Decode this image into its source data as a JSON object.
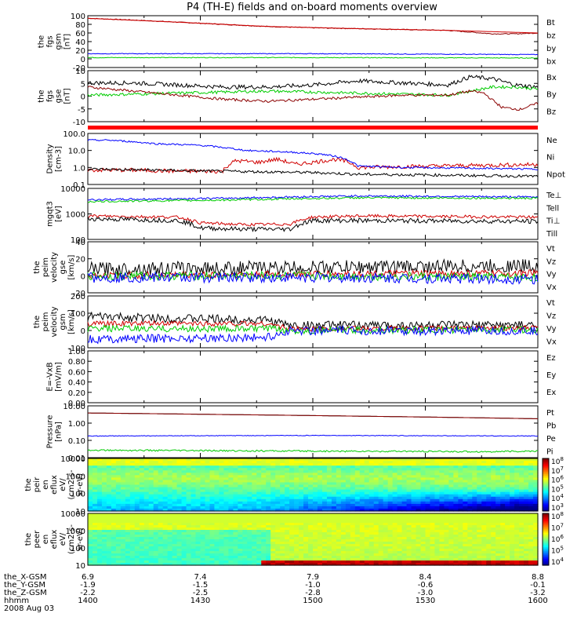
{
  "title": "P4 (TH-E) fields and on-board moments overview",
  "colors": {
    "black": "#000000",
    "red": "#d00000",
    "darkred": "#8b0000",
    "green": "#00cc00",
    "blue": "#0000ff",
    "banner": "#ff0000"
  },
  "chart_data": [
    {
      "type": "line",
      "panel": "fgs_gsm_mag",
      "ylabel_lines": [
        "the",
        "fgs",
        "gsm",
        "[nT]"
      ],
      "ylim": [
        -20,
        100
      ],
      "yticks": [
        "100",
        "80",
        "60",
        "40",
        "20",
        "0",
        "-20"
      ],
      "series": [
        {
          "name": "Bt",
          "color": "darkred",
          "x": [
            0,
            0.1,
            0.2,
            0.3,
            0.4,
            0.5,
            0.6,
            0.7,
            0.8,
            0.85,
            0.9,
            0.95,
            1
          ],
          "values": [
            94,
            90,
            85,
            80,
            75,
            72,
            70,
            68,
            66,
            62,
            58,
            58,
            60
          ],
          "noise": 1
        },
        {
          "name": "bz",
          "color": "red",
          "x": [
            0,
            0.2,
            0.4,
            0.6,
            0.8,
            1
          ],
          "values": [
            94,
            85,
            75,
            70,
            66,
            60
          ],
          "noise": 0
        },
        {
          "name": "by",
          "color": "green",
          "x": [
            0,
            0.5,
            1
          ],
          "values": [
            3,
            3,
            2
          ],
          "noise": 0.8
        },
        {
          "name": "bx",
          "color": "blue",
          "x": [
            0,
            0.5,
            1
          ],
          "values": [
            12,
            12,
            10
          ],
          "noise": 0.8
        }
      ]
    },
    {
      "type": "line",
      "panel": "fgs_gse_components",
      "ylabel_lines": [
        "the",
        "fgs",
        "gse",
        "[nT]"
      ],
      "ylim": [
        -15,
        10
      ],
      "yticks": [
        "10",
        "5",
        "0",
        "-5",
        "-10"
      ],
      "series": [
        {
          "name": "Bx",
          "color": "black",
          "x": [
            0,
            0.1,
            0.2,
            0.3,
            0.4,
            0.5,
            0.6,
            0.7,
            0.8,
            0.85,
            0.9,
            0.95,
            1
          ],
          "values": [
            4,
            4,
            3,
            2,
            2,
            3,
            5,
            4,
            3,
            7,
            6,
            3,
            2
          ],
          "noise": 1
        },
        {
          "name": "By",
          "color": "green",
          "x": [
            0,
            0.2,
            0.4,
            0.6,
            0.8,
            0.85,
            0.9,
            0.95,
            1
          ],
          "values": [
            -2,
            -1,
            0,
            -1,
            -2,
            0,
            2,
            2,
            1
          ],
          "noise": 0.7
        },
        {
          "name": "Bz",
          "color": "darkred",
          "x": [
            0,
            0.1,
            0.2,
            0.3,
            0.4,
            0.5,
            0.6,
            0.7,
            0.8,
            0.85,
            0.88,
            0.92,
            0.96,
            1
          ],
          "values": [
            2,
            0,
            -2,
            -4,
            -5,
            -4,
            -3,
            -2,
            -2,
            0,
            -1,
            -8,
            -9,
            -6
          ],
          "noise": 0.6
        }
      ]
    },
    {
      "type": "line",
      "panel": "density",
      "log": true,
      "ylabel_lines": [
        "Density",
        "[cm-3]"
      ],
      "ylim": [
        0.1,
        100
      ],
      "yticks": [
        "100.0",
        "10.0",
        "1.0",
        "0.1"
      ],
      "series": [
        {
          "name": "Ne",
          "color": "red",
          "x": [
            0,
            0.1,
            0.2,
            0.3,
            0.33,
            0.38,
            0.42,
            0.46,
            0.5,
            0.55,
            0.58,
            0.6,
            1
          ],
          "values": [
            0.7,
            0.7,
            0.6,
            0.6,
            2.5,
            2,
            3,
            1.5,
            2,
            3,
            2,
            1,
            1.5
          ],
          "noise": 0.12
        },
        {
          "name": "Ni",
          "color": "black",
          "x": [
            0,
            0.3,
            0.5,
            0.6,
            1
          ],
          "values": [
            0.8,
            0.6,
            0.5,
            0.4,
            0.3
          ],
          "noise": 0.08
        },
        {
          "name": "Npot",
          "color": "blue",
          "x": [
            0,
            0.05,
            0.15,
            0.25,
            0.35,
            0.45,
            0.52,
            0.56,
            0.6,
            0.7,
            1
          ],
          "values": [
            40,
            40,
            25,
            20,
            10,
            8,
            6,
            4,
            1.2,
            1,
            0.8
          ],
          "noise": 0.05
        }
      ]
    },
    {
      "type": "line",
      "panel": "temperature",
      "log": true,
      "ylabel_lines": [
        "mgqt3",
        "[eV]"
      ],
      "ylim": [
        20,
        10000
      ],
      "yticks": [
        "10000",
        "1000",
        "100"
      ],
      "series": [
        {
          "name": "Te⊥",
          "color": "red",
          "x": [
            0,
            0.2,
            0.25,
            0.35,
            0.45,
            0.5,
            0.6,
            1
          ],
          "values": [
            350,
            300,
            150,
            120,
            130,
            300,
            350,
            300
          ],
          "noise": 0.08
        },
        {
          "name": "Tell",
          "color": "black",
          "x": [
            0,
            0.2,
            0.25,
            0.35,
            0.45,
            0.5,
            0.6,
            1
          ],
          "values": [
            250,
            200,
            80,
            70,
            70,
            200,
            200,
            180
          ],
          "noise": 0.12
        },
        {
          "name": "Ti⊥",
          "color": "blue",
          "x": [
            0,
            0.3,
            0.6,
            1
          ],
          "values": [
            2500,
            3000,
            4000,
            3500
          ],
          "noise": 0.05
        },
        {
          "name": "Till",
          "color": "green",
          "x": [
            0,
            0.3,
            0.6,
            1
          ],
          "values": [
            2000,
            2400,
            3200,
            3000
          ],
          "noise": 0.05
        }
      ]
    },
    {
      "type": "line",
      "panel": "peim_velocity_gse",
      "ylabel_lines": [
        "the",
        "peim",
        "velocity",
        "gse",
        "[km/s]"
      ],
      "ylim": [
        -20,
        40
      ],
      "yticks": [
        "40",
        "20",
        "0",
        "-20"
      ],
      "series": [
        {
          "name": "Vt",
          "color": "black",
          "x": [
            0,
            0.5,
            1
          ],
          "values": [
            8,
            10,
            12
          ],
          "noise": 8
        },
        {
          "name": "Vz",
          "color": "red",
          "x": [
            0,
            0.5,
            1
          ],
          "values": [
            0,
            2,
            3
          ],
          "noise": 4
        },
        {
          "name": "Vy",
          "color": "green",
          "x": [
            0,
            0.5,
            1
          ],
          "values": [
            0,
            0,
            -2
          ],
          "noise": 5
        },
        {
          "name": "Vx",
          "color": "blue",
          "x": [
            0,
            0.5,
            1
          ],
          "values": [
            -2,
            -2,
            -4
          ],
          "noise": 6
        }
      ]
    },
    {
      "type": "line",
      "panel": "peim_velocity_gsm",
      "ylabel_lines": [
        "the",
        "peim",
        "velocity",
        "gsm",
        "[km/s]"
      ],
      "ylim": [
        -100,
        200
      ],
      "yticks": [
        "200",
        "100",
        "0",
        "-100"
      ],
      "series": [
        {
          "name": "Vt",
          "color": "black",
          "x": [
            0,
            0.4,
            0.45,
            1
          ],
          "values": [
            80,
            60,
            30,
            30
          ],
          "noise": 25
        },
        {
          "name": "Vz",
          "color": "red",
          "x": [
            0,
            0.4,
            0.45,
            1
          ],
          "values": [
            40,
            40,
            10,
            15
          ],
          "noise": 15
        },
        {
          "name": "Vy",
          "color": "green",
          "x": [
            0,
            0.4,
            0.45,
            1
          ],
          "values": [
            10,
            10,
            0,
            5
          ],
          "noise": 20
        },
        {
          "name": "Vx",
          "color": "blue",
          "x": [
            0,
            0.4,
            0.45,
            1
          ],
          "values": [
            -50,
            -40,
            0,
            -5
          ],
          "noise": 25
        }
      ]
    },
    {
      "type": "line",
      "panel": "efield",
      "ylabel_lines": [
        "E=-VxB",
        "[mV/m]"
      ],
      "ylim": [
        0,
        1
      ],
      "yticks": [
        "1.00",
        "0.80",
        "0.60",
        "0.40",
        "0.20",
        "0.00"
      ],
      "series": [
        {
          "name": "Ez",
          "color": "red",
          "x": [],
          "values": [],
          "noise": 0
        },
        {
          "name": "Ey",
          "color": "green",
          "x": [],
          "values": [],
          "noise": 0
        },
        {
          "name": "Ex",
          "color": "blue",
          "x": [],
          "values": [],
          "noise": 0
        }
      ]
    },
    {
      "type": "line",
      "panel": "pressure",
      "log": true,
      "ylabel_lines": [
        "Pressure",
        "[nPa]"
      ],
      "ylim": [
        0.005,
        10
      ],
      "yticks": [
        "10.00",
        "1.00",
        "0.10",
        "0.01"
      ],
      "series": [
        {
          "name": "Pt",
          "color": "black",
          "x": [
            0,
            0.3,
            0.6,
            1
          ],
          "values": [
            3.5,
            2.8,
            2.2,
            1.5
          ],
          "noise": 0
        },
        {
          "name": "Pb",
          "color": "darkred",
          "x": [
            0,
            0.3,
            0.6,
            1
          ],
          "values": [
            3.5,
            2.8,
            2.2,
            1.5
          ],
          "noise": 0
        },
        {
          "name": "Pe",
          "color": "green",
          "x": [
            0,
            0.5,
            0.9,
            1
          ],
          "values": [
            0.015,
            0.013,
            0.012,
            0.013
          ],
          "noise": 0.05
        },
        {
          "name": "Pi",
          "color": "blue",
          "x": [
            0,
            0.5,
            1
          ],
          "values": [
            0.12,
            0.13,
            0.12
          ],
          "noise": 0.02
        }
      ]
    },
    {
      "type": "heatmap",
      "panel": "peir_en_eflux",
      "ylabel_lines": [
        "the",
        "peir",
        "en",
        "eflux",
        "eV/",
        "(cm2-s-",
        "sr-eV)"
      ],
      "yticks": [
        "10000",
        "1000",
        "100",
        "10"
      ],
      "colorbar_ticks": [
        "10^8",
        "10^7",
        "10^6",
        "10^5",
        "10^4",
        "10^3"
      ]
    },
    {
      "type": "heatmap",
      "panel": "peer_en_eflux",
      "ylabel_lines": [
        "the",
        "peer",
        "en",
        "eflux",
        "eV/",
        "(cm2-s-",
        "sr-eV)"
      ],
      "yticks": [
        "10000",
        "1000",
        "100",
        "10"
      ],
      "colorbar_ticks": [
        "10^8",
        "10^7",
        "10^6",
        "10^5",
        "10^4"
      ]
    }
  ],
  "xaxis": {
    "rows": [
      {
        "label": "the_X-GSM",
        "values": [
          "6.9",
          "7.4",
          "7.9",
          "8.4",
          "8.8"
        ]
      },
      {
        "label": "the_Y-GSM",
        "values": [
          "-1.9",
          "-1.5",
          "-1.0",
          "-0.6",
          "-0.1"
        ]
      },
      {
        "label": "the_Z-GSM",
        "values": [
          "-2.2",
          "-2.5",
          "-2.8",
          "-3.0",
          "-3.2"
        ]
      },
      {
        "label": "hhmm",
        "values": [
          "1400",
          "1430",
          "1500",
          "1530",
          "1600"
        ]
      }
    ],
    "date": "2008 Aug 03"
  }
}
